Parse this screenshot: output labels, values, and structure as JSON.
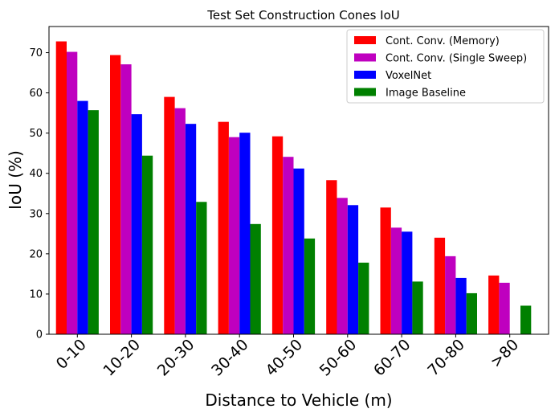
{
  "chart_data": {
    "type": "bar",
    "title": "Test Set Construction Cones IoU",
    "xlabel": "Distance to Vehicle (m)",
    "ylabel": "IoU (%)",
    "ylim": [
      0,
      76.5
    ],
    "yticks": [
      0,
      10,
      20,
      30,
      40,
      50,
      60,
      70
    ],
    "grid": false,
    "legend_position": "top-right",
    "categories": [
      "0-10",
      "10-20",
      "20-30",
      "30-40",
      "40-50",
      "50-60",
      "60-70",
      "70-80",
      ">80"
    ],
    "series": [
      {
        "name": "Cont. Conv. (Memory)",
        "color": "#ff0000",
        "values": [
          72.8,
          69.4,
          59.0,
          52.8,
          49.2,
          38.3,
          31.5,
          24.0,
          14.6
        ]
      },
      {
        "name": "Cont. Conv. (Single Sweep)",
        "color": "#bf00bf",
        "values": [
          70.2,
          67.1,
          56.2,
          49.0,
          44.1,
          33.9,
          26.5,
          19.4,
          12.8
        ]
      },
      {
        "name": "VoxelNet",
        "color": "#0000ff",
        "values": [
          58.0,
          54.7,
          52.3,
          50.1,
          41.2,
          32.1,
          25.5,
          14.0,
          0
        ]
      },
      {
        "name": "Image Baseline",
        "color": "#008000",
        "values": [
          55.7,
          44.4,
          32.9,
          27.4,
          23.8,
          17.8,
          13.1,
          10.2,
          7.1
        ]
      }
    ]
  }
}
